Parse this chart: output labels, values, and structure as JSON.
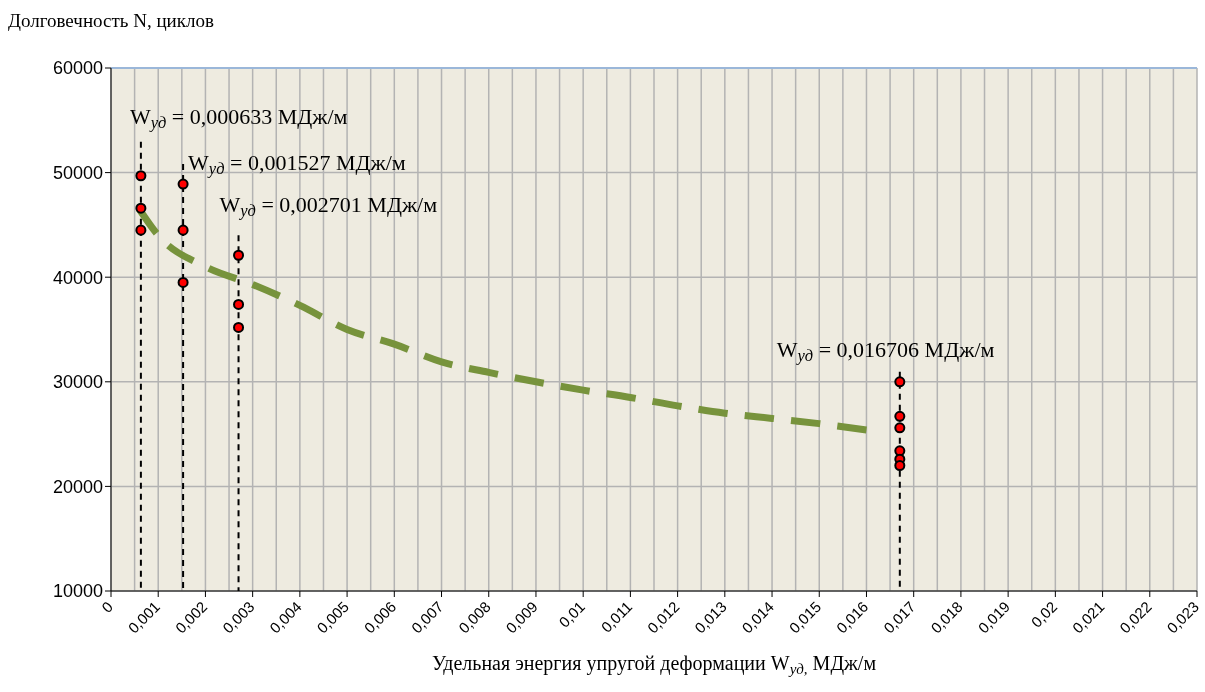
{
  "chart_data": {
    "type": "scatter",
    "ylabel": "Долговечность N, циклов",
    "xlabel": "Удельная энергия упругой деформации W$_{уд,}$ МДж/м",
    "xlim": [
      0,
      0.023
    ],
    "xticks": [
      0,
      {
        "value": 0.001,
        "label": "0,001"
      },
      {
        "value": 0.002,
        "label": "0,002"
      },
      {
        "value": 0.003,
        "label": "0,003"
      },
      {
        "value": 0.004,
        "label": "0,004"
      },
      {
        "value": 0.005,
        "label": "0,005"
      },
      {
        "value": 0.006,
        "label": "0,006"
      },
      {
        "value": 0.007,
        "label": "0,007"
      },
      {
        "value": 0.008,
        "label": "0,008"
      },
      {
        "value": 0.009,
        "label": "0,009"
      },
      {
        "value": 0.01,
        "label": "0,01"
      },
      {
        "value": 0.011,
        "label": "0,011"
      },
      {
        "value": 0.012,
        "label": "0,012"
      },
      {
        "value": 0.013,
        "label": "0,013"
      },
      {
        "value": 0.014,
        "label": "0,014"
      },
      {
        "value": 0.015,
        "label": "0,015"
      },
      {
        "value": 0.016,
        "label": "0,016"
      },
      {
        "value": 0.017,
        "label": "0,017"
      },
      {
        "value": 0.018,
        "label": "0,018"
      },
      {
        "value": 0.019,
        "label": "0,019"
      },
      {
        "value": 0.02,
        "label": "0,02"
      },
      {
        "value": 0.021,
        "label": "0,021"
      },
      {
        "value": 0.022,
        "label": "0,022"
      },
      {
        "value": 0.023,
        "label": "0,023"
      }
    ],
    "ylim": [
      10000,
      60000
    ],
    "yticks": [
      10000,
      20000,
      30000,
      40000,
      50000,
      60000
    ],
    "grid": true,
    "series": [
      {
        "type": "line",
        "color": "#77933c",
        "line_style": "dashed",
        "marker": "none",
        "x": [
          0.0006,
          0.001,
          0.002,
          0.003,
          0.004,
          0.005,
          0.006,
          0.007,
          0.008,
          0.009,
          0.01,
          0.011,
          0.012,
          0.013,
          0.014,
          0.015,
          0.016
        ],
        "values": [
          46500,
          44000,
          41000,
          39300,
          37300,
          35000,
          33600,
          31900,
          30900,
          30000,
          29200,
          28500,
          27700,
          27000,
          26500,
          26000,
          25400
        ]
      },
      {
        "color": "#ff0000",
        "marker": "circle",
        "x": [
          0.000633,
          0.000633,
          0.000633,
          0.001527,
          0.001527,
          0.001527,
          0.002701,
          0.002701,
          0.002701,
          0.016706,
          0.016706,
          0.016706,
          0.016706,
          0.016706,
          0.016706
        ],
        "values": [
          49700,
          46600,
          44500,
          48900,
          44500,
          39500,
          42100,
          37400,
          35200,
          30000,
          26700,
          25600,
          23400,
          22600,
          22000
        ]
      }
    ],
    "ref_lines": [
      {
        "axis": "x",
        "value": 0.000633,
        "color": "#000000",
        "line_style": "dashed",
        "label": "W$_{уд}$ = 0,000633 МДж/м"
      },
      {
        "axis": "x",
        "value": 0.001527,
        "color": "#000000",
        "line_style": "dashed",
        "label": "W$_{уд}$ = 0,001527 МДж/м"
      },
      {
        "axis": "x",
        "value": 0.002701,
        "color": "#000000",
        "line_style": "dashed",
        "label": "W$_{уд}$ = 0,002701 МДж/м"
      },
      {
        "axis": "x",
        "value": 0.016706,
        "color": "#000000",
        "line_style": "dashed",
        "label": "W$_{уд}$ = 0,016706 МДж/м"
      }
    ]
  }
}
